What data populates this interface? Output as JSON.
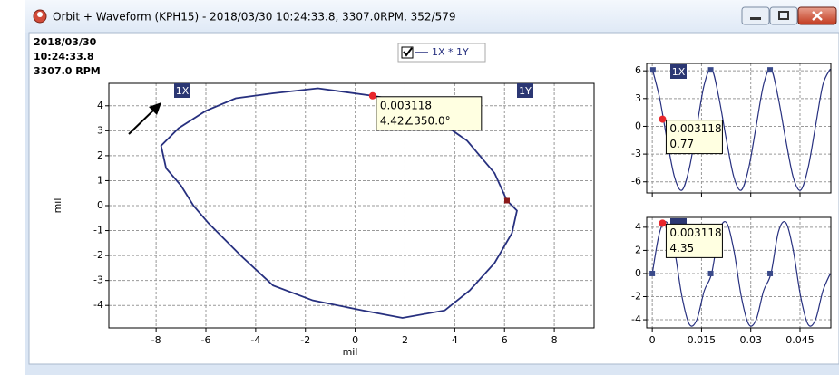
{
  "window": {
    "title": "Orbit + Waveform (KPH15) - 2018/03/30 10:24:33.8, 3307.0RPM, 352/579"
  },
  "info": [
    "2018/03/30",
    "10:24:33.8",
    "3307.0 RPM"
  ],
  "chart_data": [
    {
      "type": "line",
      "xlabel": "mil",
      "ylabel": "mil",
      "xlim": [
        -9.9,
        9.6
      ],
      "ylim": [
        -4.9,
        4.9
      ],
      "xticks": [
        -8,
        -6,
        -4,
        -2,
        0,
        2,
        4,
        6,
        8
      ],
      "yticks": [
        -4,
        -3,
        -2,
        -1,
        0,
        1,
        2,
        3,
        4
      ],
      "grid": true,
      "legend": "top",
      "series": [
        {
          "name": "1X * 1Y",
          "color": "#27307f",
          "x": [
            0.7,
            -1.5,
            -3.3,
            -4.8,
            -6.0,
            -7.1,
            -7.8,
            -7.6,
            -7.0,
            -6.5,
            -5.9,
            -4.6,
            -3.3,
            -1.7,
            0.3,
            1.9,
            3.6,
            4.6,
            5.6,
            6.3,
            6.5,
            6.1,
            5.6,
            4.5,
            3.2,
            1.9,
            0.7
          ],
          "values": [
            4.4,
            4.7,
            4.5,
            4.3,
            3.8,
            3.1,
            2.4,
            1.5,
            0.8,
            0.0,
            -0.7,
            -2.0,
            -3.2,
            -3.8,
            -4.2,
            -4.5,
            -4.2,
            -3.4,
            -2.3,
            -1.1,
            -0.2,
            0.2,
            1.3,
            2.6,
            3.5,
            4.2,
            4.4
          ]
        }
      ],
      "annotations": [
        "1X",
        "1Y"
      ],
      "cursor": {
        "x": 0.7,
        "y": 4.4,
        "label": [
          "0.003118",
          "4.42∠350.0°"
        ]
      },
      "keyphasor": {
        "x": [
          6.1
        ],
        "values": [
          0.2
        ]
      }
    },
    {
      "type": "line",
      "xlim": [
        -0.0017,
        0.0544
      ],
      "ylim": [
        -7.2,
        6.8
      ],
      "xticks": [
        0,
        0.015,
        0.03,
        0.045
      ],
      "yticks": [
        -6,
        -3,
        0,
        3,
        6
      ],
      "grid": true,
      "show_xtick_labels": false,
      "series": [
        {
          "color": "#27307f",
          "x": [
            0,
            0.00226,
            0.00452,
            0.00678,
            0.00904,
            0.0113,
            0.01356,
            0.01582,
            0.01808,
            0.02034,
            0.0226,
            0.02486,
            0.02712,
            0.02938,
            0.03164,
            0.0339,
            0.03616,
            0.03842,
            0.04068,
            0.04294,
            0.0452,
            0.04746,
            0.04972,
            0.05198,
            0.05424
          ],
          "values": [
            6.2,
            3.0,
            -1.5,
            -5.5,
            -6.9,
            -4.5,
            0,
            4.5,
            6.2,
            3.0,
            -1.5,
            -5.5,
            -6.9,
            -4.5,
            0,
            4.5,
            6.2,
            3.0,
            -1.5,
            -5.5,
            -6.9,
            -4.5,
            0,
            4.5,
            6.2
          ]
        }
      ],
      "annotations": [
        "1X"
      ],
      "cursor": {
        "x": 0.003118,
        "y": 0.77
      },
      "keyphasor": {
        "x": [
          0.0002,
          0.0178,
          0.0359
        ],
        "values": [
          6.1,
          6.1,
          6.1
        ]
      }
    },
    {
      "type": "line",
      "xlim": [
        -0.0017,
        0.0544
      ],
      "ylim": [
        -4.7,
        4.85
      ],
      "xticks": [
        0,
        0.015,
        0.03,
        0.045
      ],
      "yticks": [
        -4,
        -2,
        0,
        2,
        4
      ],
      "grid": true,
      "show_xtick_labels": true,
      "series": [
        {
          "color": "#27307f",
          "x": [
            0,
            0.00226,
            0.00452,
            0.00678,
            0.00904,
            0.0113,
            0.01356,
            0.01582,
            0.01808,
            0.02034,
            0.0226,
            0.02486,
            0.02712,
            0.02938,
            0.03164,
            0.0339,
            0.03616,
            0.03842,
            0.04068,
            0.04294,
            0.0452,
            0.04746,
            0.04972,
            0.05198,
            0.05424
          ],
          "values": [
            0,
            3.6,
            4.4,
            2.0,
            -2.0,
            -4.4,
            -4.0,
            -1.5,
            0,
            3.6,
            4.4,
            2.0,
            -2.0,
            -4.4,
            -4.0,
            -1.5,
            0,
            3.6,
            4.4,
            2.0,
            -2.0,
            -4.4,
            -4.0,
            -1.5,
            0
          ]
        }
      ],
      "cursor": {
        "x": 0.003118,
        "y": 4.35
      },
      "keyphasor": {
        "x": [
          0,
          0.0178,
          0.0359
        ],
        "values": [
          0,
          0,
          0
        ]
      }
    }
  ]
}
